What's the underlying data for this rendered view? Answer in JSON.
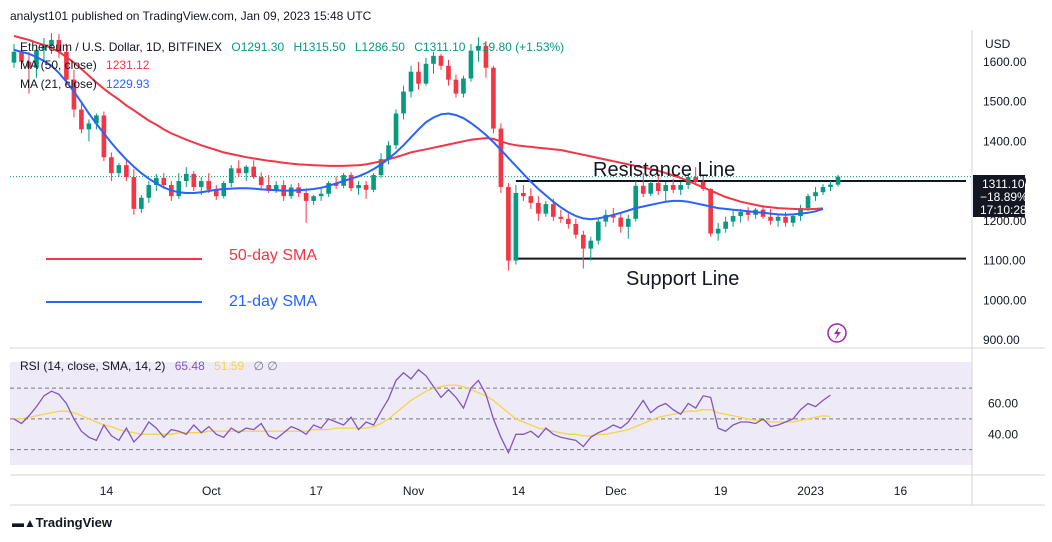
{
  "header": "analyst101 published on TradingView.com, Jan 09, 2023 15:48 UTC",
  "brand": "TradingView",
  "chart_data": [
    {
      "type": "candlestick",
      "symbol_line": {
        "name": "Ethereum / U.S. Dollar, 1D, BITFINEX",
        "open": "O1291.30",
        "high": "H1315.50",
        "low": "L1286.50",
        "close": "C1311.10",
        "change": "+19.80 (+1.53%)"
      },
      "legend": [
        {
          "label": "MA (50, close)",
          "value": "1231.12"
        },
        {
          "label": "MA (21, close)",
          "value": "1229.93"
        }
      ],
      "currency": "USD",
      "y_ticks": [
        "1600.00",
        "1500.00",
        "1400.00",
        "1300.00",
        "1200.00",
        "1100.00",
        "1000.00",
        "900.00"
      ],
      "ylim": [
        880,
        1680
      ],
      "x_ticks": [
        "14",
        "Oct",
        "17",
        "Nov",
        "14",
        "Dec",
        "19",
        "2023",
        "16"
      ],
      "price_tag": {
        "price": "1311.10",
        "change": "−18.89%",
        "countdown": "17:10:28"
      },
      "annotations": {
        "resistance_label": "Resistance Line",
        "support_label": "Support Line",
        "sma50_label": "50-day SMA",
        "sma21_label": "21-day SMA",
        "resistance_level": 1300,
        "support_level": 1105
      },
      "candles": [
        [
          1598,
          1645,
          1585,
          1625
        ],
        [
          1625,
          1650,
          1590,
          1600
        ],
        [
          1600,
          1625,
          1520,
          1585
        ],
        [
          1585,
          1640,
          1560,
          1630
        ],
        [
          1630,
          1660,
          1600,
          1640
        ],
        [
          1640,
          1672,
          1620,
          1655
        ],
        [
          1655,
          1670,
          1610,
          1625
        ],
        [
          1625,
          1645,
          1540,
          1555
        ],
        [
          1555,
          1580,
          1460,
          1480
        ],
        [
          1480,
          1500,
          1420,
          1430
        ],
        [
          1430,
          1455,
          1400,
          1445
        ],
        [
          1445,
          1470,
          1430,
          1465
        ],
        [
          1465,
          1475,
          1350,
          1360
        ],
        [
          1360,
          1372,
          1300,
          1320
        ],
        [
          1320,
          1345,
          1310,
          1340
        ],
        [
          1340,
          1355,
          1300,
          1310
        ],
        [
          1310,
          1330,
          1215,
          1230
        ],
        [
          1230,
          1265,
          1220,
          1258
        ],
        [
          1258,
          1300,
          1245,
          1290
        ],
        [
          1290,
          1318,
          1275,
          1308
        ],
        [
          1308,
          1320,
          1280,
          1290
        ],
        [
          1290,
          1300,
          1250,
          1262
        ],
        [
          1262,
          1320,
          1255,
          1300
        ],
        [
          1300,
          1335,
          1285,
          1318
        ],
        [
          1318,
          1325,
          1275,
          1285
        ],
        [
          1285,
          1310,
          1265,
          1300
        ],
        [
          1300,
          1320,
          1270,
          1278
        ],
        [
          1278,
          1290,
          1252,
          1262
        ],
        [
          1262,
          1300,
          1256,
          1295
        ],
        [
          1295,
          1340,
          1285,
          1332
        ],
        [
          1332,
          1352,
          1310,
          1320
        ],
        [
          1320,
          1340,
          1300,
          1336
        ],
        [
          1336,
          1352,
          1305,
          1310
        ],
        [
          1310,
          1322,
          1278,
          1290
        ],
        [
          1290,
          1315,
          1270,
          1275
        ],
        [
          1275,
          1300,
          1270,
          1290
        ],
        [
          1290,
          1302,
          1250,
          1262
        ],
        [
          1262,
          1292,
          1255,
          1284
        ],
        [
          1284,
          1295,
          1260,
          1270
        ],
        [
          1270,
          1282,
          1195,
          1250
        ],
        [
          1250,
          1265,
          1240,
          1262
        ],
        [
          1262,
          1280,
          1250,
          1268
        ],
        [
          1268,
          1300,
          1260,
          1295
        ],
        [
          1295,
          1312,
          1280,
          1288
        ],
        [
          1288,
          1320,
          1282,
          1315
        ],
        [
          1315,
          1322,
          1275,
          1282
        ],
        [
          1282,
          1300,
          1265,
          1290
        ],
        [
          1290,
          1300,
          1255,
          1278
        ],
        [
          1278,
          1320,
          1272,
          1315
        ],
        [
          1315,
          1370,
          1308,
          1355
        ],
        [
          1355,
          1400,
          1342,
          1390
        ],
        [
          1390,
          1480,
          1380,
          1470
        ],
        [
          1470,
          1540,
          1455,
          1525
        ],
        [
          1525,
          1590,
          1510,
          1575
        ],
        [
          1575,
          1600,
          1530,
          1545
        ],
        [
          1545,
          1610,
          1540,
          1595
        ],
        [
          1595,
          1625,
          1570,
          1615
        ],
        [
          1615,
          1620,
          1580,
          1590
        ],
        [
          1590,
          1605,
          1540,
          1555
        ],
        [
          1555,
          1568,
          1510,
          1520
        ],
        [
          1520,
          1565,
          1510,
          1558
        ],
        [
          1558,
          1645,
          1550,
          1628
        ],
        [
          1628,
          1662,
          1600,
          1640
        ],
        [
          1640,
          1652,
          1560,
          1585
        ],
        [
          1585,
          1590,
          1420,
          1432
        ],
        [
          1432,
          1445,
          1270,
          1285
        ],
        [
          1285,
          1295,
          1075,
          1100
        ],
        [
          1100,
          1290,
          1090,
          1270
        ],
        [
          1270,
          1290,
          1250,
          1262
        ],
        [
          1262,
          1282,
          1230,
          1245
        ],
        [
          1245,
          1262,
          1200,
          1218
        ],
        [
          1218,
          1250,
          1210,
          1242
        ],
        [
          1242,
          1255,
          1200,
          1210
        ],
        [
          1210,
          1228,
          1195,
          1205
        ],
        [
          1205,
          1218,
          1180,
          1192
        ],
        [
          1192,
          1205,
          1155,
          1165
        ],
        [
          1165,
          1175,
          1080,
          1130
        ],
        [
          1130,
          1160,
          1100,
          1150
        ],
        [
          1150,
          1205,
          1140,
          1198
        ],
        [
          1198,
          1228,
          1185,
          1215
        ],
        [
          1215,
          1232,
          1195,
          1208
        ],
        [
          1208,
          1222,
          1170,
          1185
        ],
        [
          1185,
          1215,
          1155,
          1205
        ],
        [
          1205,
          1300,
          1198,
          1288
        ],
        [
          1288,
          1320,
          1260,
          1268
        ],
        [
          1268,
          1300,
          1262,
          1295
        ],
        [
          1295,
          1315,
          1265,
          1275
        ],
        [
          1275,
          1298,
          1250,
          1290
        ],
        [
          1290,
          1305,
          1270,
          1278
        ],
        [
          1278,
          1298,
          1265,
          1290
        ],
        [
          1290,
          1320,
          1280,
          1310
        ],
        [
          1310,
          1335,
          1290,
          1298
        ],
        [
          1298,
          1315,
          1275,
          1280
        ],
        [
          1280,
          1282,
          1160,
          1168
        ],
        [
          1168,
          1195,
          1150,
          1180
        ],
        [
          1180,
          1210,
          1170,
          1198
        ],
        [
          1198,
          1225,
          1185,
          1212
        ],
        [
          1212,
          1230,
          1195,
          1222
        ],
        [
          1222,
          1235,
          1200,
          1215
        ],
        [
          1215,
          1232,
          1205,
          1228
        ],
        [
          1228,
          1240,
          1205,
          1210
        ],
        [
          1210,
          1230,
          1190,
          1200
        ],
        [
          1200,
          1218,
          1185,
          1210
        ],
        [
          1210,
          1222,
          1185,
          1195
        ],
        [
          1195,
          1215,
          1185,
          1212
        ],
        [
          1212,
          1240,
          1200,
          1232
        ],
        [
          1232,
          1268,
          1225,
          1262
        ],
        [
          1262,
          1285,
          1250,
          1272
        ],
        [
          1272,
          1292,
          1265,
          1285
        ],
        [
          1285,
          1300,
          1275,
          1291
        ],
        [
          1291,
          1315.5,
          1286.5,
          1311.1
        ]
      ],
      "sma50": [
        1665,
        1660,
        1655,
        1648,
        1642,
        1635,
        1625,
        1612,
        1598,
        1582,
        1565,
        1548,
        1532,
        1518,
        1505,
        1490,
        1478,
        1465,
        1452,
        1442,
        1430,
        1420,
        1412,
        1404,
        1397,
        1390,
        1384,
        1378,
        1372,
        1368,
        1364,
        1360,
        1357,
        1354,
        1351,
        1349,
        1346,
        1344,
        1342,
        1341,
        1340,
        1339,
        1338,
        1338,
        1338,
        1339,
        1340,
        1342,
        1346,
        1350,
        1355,
        1360,
        1366,
        1372,
        1376,
        1380,
        1384,
        1388,
        1392,
        1396,
        1400,
        1404,
        1406,
        1408,
        1406,
        1400,
        1394,
        1390,
        1388,
        1386,
        1384,
        1382,
        1380,
        1378,
        1374,
        1370,
        1366,
        1362,
        1358,
        1354,
        1350,
        1346,
        1342,
        1338,
        1334,
        1330,
        1326,
        1320,
        1314,
        1308,
        1300,
        1292,
        1284,
        1276,
        1268,
        1260,
        1254,
        1248,
        1244,
        1240,
        1236,
        1234,
        1232,
        1231,
        1230,
        1229,
        1229,
        1230,
        1231.12
      ],
      "sma21": [
        1630,
        1625,
        1620,
        1612,
        1602,
        1590,
        1572,
        1550,
        1525,
        1498,
        1470,
        1444,
        1420,
        1396,
        1374,
        1354,
        1336,
        1320,
        1306,
        1294,
        1284,
        1276,
        1272,
        1270,
        1270,
        1272,
        1275,
        1278,
        1280,
        1281,
        1282,
        1282,
        1281,
        1279,
        1278,
        1277,
        1276,
        1276,
        1277,
        1278,
        1280,
        1283,
        1288,
        1294,
        1300,
        1306,
        1312,
        1320,
        1330,
        1342,
        1356,
        1372,
        1390,
        1410,
        1430,
        1448,
        1460,
        1468,
        1470,
        1466,
        1458,
        1446,
        1432,
        1416,
        1398,
        1378,
        1358,
        1338,
        1318,
        1298,
        1280,
        1264,
        1248,
        1234,
        1222,
        1212,
        1206,
        1204,
        1206,
        1210,
        1215,
        1220,
        1226,
        1232,
        1236,
        1240,
        1244,
        1248,
        1250,
        1250,
        1248,
        1244,
        1240,
        1236,
        1232,
        1230,
        1228,
        1226,
        1224,
        1222,
        1220,
        1218,
        1216,
        1215,
        1216,
        1218,
        1220,
        1224,
        1229.93
      ]
    },
    {
      "type": "line",
      "name": "RSI (14, close, SMA, 14, 2)",
      "rsi_value": "65.48",
      "sma_value": "51.59",
      "extra": "∅ ∅",
      "y_ticks": [
        "60.00",
        "40.00"
      ],
      "ylim": [
        20,
        87
      ],
      "bands": [
        70,
        50,
        30
      ],
      "rsi": [
        50,
        47,
        52,
        58,
        65,
        68,
        66,
        60,
        50,
        42,
        38,
        36,
        46,
        39,
        36,
        44,
        35,
        40,
        48,
        44,
        38,
        43,
        42,
        40,
        46,
        41,
        45,
        40,
        38,
        44,
        41,
        44,
        43,
        47,
        39,
        37,
        41,
        45,
        43,
        40,
        46,
        44,
        50,
        48,
        46,
        51,
        43,
        48,
        46,
        55,
        63,
        75,
        80,
        76,
        82,
        78,
        71,
        64,
        69,
        64,
        57,
        70,
        75,
        66,
        50,
        38,
        28,
        40,
        40,
        42,
        38,
        44,
        40,
        38,
        37,
        36,
        32,
        38,
        41,
        43,
        46,
        44,
        48,
        55,
        62,
        54,
        58,
        60,
        56,
        53,
        60,
        57,
        65,
        64,
        44,
        42,
        46,
        48,
        48,
        47,
        50,
        45,
        46,
        48,
        50,
        56,
        60,
        58,
        62,
        65.48
      ],
      "sma": [
        50,
        50,
        51,
        52,
        53,
        54,
        55,
        55,
        54,
        52,
        50,
        48,
        46,
        45,
        43,
        42,
        41,
        40,
        40,
        40,
        40,
        40,
        41,
        41,
        41,
        41,
        42,
        42,
        42,
        42,
        42,
        42,
        42,
        42,
        42,
        42,
        42,
        42,
        42,
        42,
        43,
        43,
        43,
        44,
        44,
        44,
        44,
        44,
        45,
        47,
        50,
        54,
        58,
        62,
        65,
        68,
        70,
        71,
        72,
        72,
        71,
        69,
        67,
        65,
        62,
        58,
        54,
        50,
        48,
        46,
        44,
        43,
        42,
        41,
        40,
        40,
        39,
        39,
        40,
        40,
        41,
        42,
        43,
        45,
        47,
        49,
        51,
        52,
        53,
        54,
        55,
        55,
        56,
        56,
        54,
        53,
        52,
        51,
        50,
        49,
        49,
        48,
        48,
        48,
        48,
        49,
        50,
        51,
        52,
        51.59
      ]
    }
  ]
}
